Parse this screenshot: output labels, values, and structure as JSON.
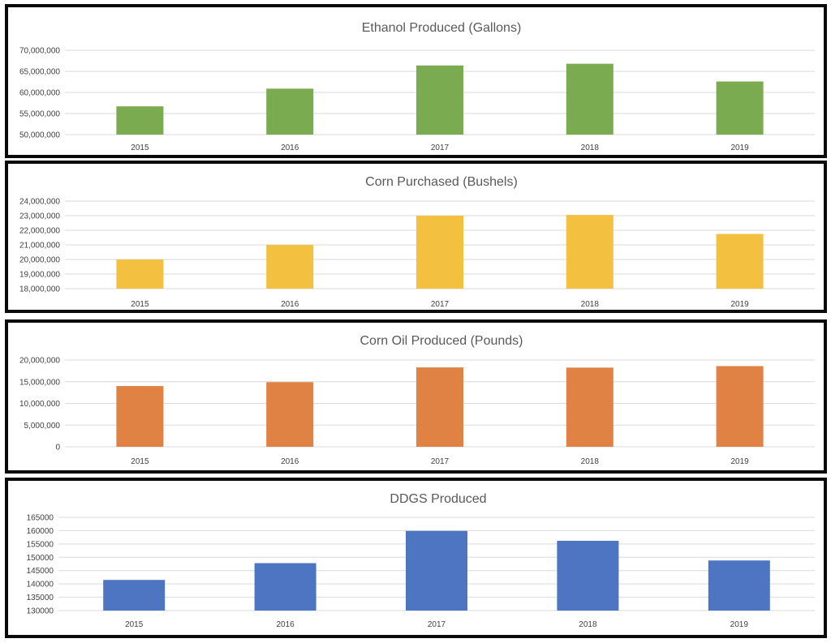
{
  "chart_data": [
    {
      "type": "bar",
      "title": "Ethanol Produced (Gallons)",
      "categories": [
        "2015",
        "2016",
        "2017",
        "2018",
        "2019"
      ],
      "values": [
        56700000,
        60900000,
        66400000,
        66800000,
        62600000
      ],
      "ylim": [
        50000000,
        70000000
      ],
      "yticks": [
        50000000,
        55000000,
        60000000,
        65000000,
        70000000
      ],
      "ytick_labels": [
        "50,000,000",
        "55,000,000",
        "60,000,000",
        "65,000,000",
        "70,000,000"
      ],
      "color": "#7bab50",
      "grid": true,
      "legend": "none"
    },
    {
      "type": "bar",
      "title": "Corn Purchased (Bushels)",
      "categories": [
        "2015",
        "2016",
        "2017",
        "2018",
        "2019"
      ],
      "values": [
        20000000,
        21000000,
        23000000,
        23050000,
        21750000
      ],
      "ylim": [
        18000000,
        24000000
      ],
      "yticks": [
        18000000,
        19000000,
        20000000,
        21000000,
        22000000,
        23000000,
        24000000
      ],
      "ytick_labels": [
        "18,000,000",
        "19,000,000",
        "20,000,000",
        "21,000,000",
        "22,000,000",
        "23,000,000",
        "24,000,000"
      ],
      "color": "#f4c040",
      "grid": true,
      "legend": "none"
    },
    {
      "type": "bar",
      "title": "Corn Oil Produced (Pounds)",
      "categories": [
        "2015",
        "2016",
        "2017",
        "2018",
        "2019"
      ],
      "values": [
        14000000,
        14900000,
        18300000,
        18250000,
        18600000
      ],
      "ylim": [
        0,
        20000000
      ],
      "yticks": [
        0,
        5000000,
        10000000,
        15000000,
        20000000
      ],
      "ytick_labels": [
        "0",
        "5,000,000",
        "10,000,000",
        "15,000,000",
        "20,000,000"
      ],
      "color": "#df8244",
      "grid": true,
      "legend": "none"
    },
    {
      "type": "bar",
      "title": "DDGS Produced",
      "categories": [
        "2015",
        "2016",
        "2017",
        "2018",
        "2019"
      ],
      "values": [
        141500,
        147800,
        159900,
        156200,
        148800
      ],
      "ylim": [
        130000,
        165000
      ],
      "yticks": [
        130000,
        135000,
        140000,
        145000,
        150000,
        155000,
        160000,
        165000
      ],
      "ytick_labels": [
        "130000",
        "135000",
        "140000",
        "145000",
        "150000",
        "155000",
        "160000",
        "165000"
      ],
      "color": "#4e75c1",
      "grid": true,
      "legend": "none"
    }
  ]
}
